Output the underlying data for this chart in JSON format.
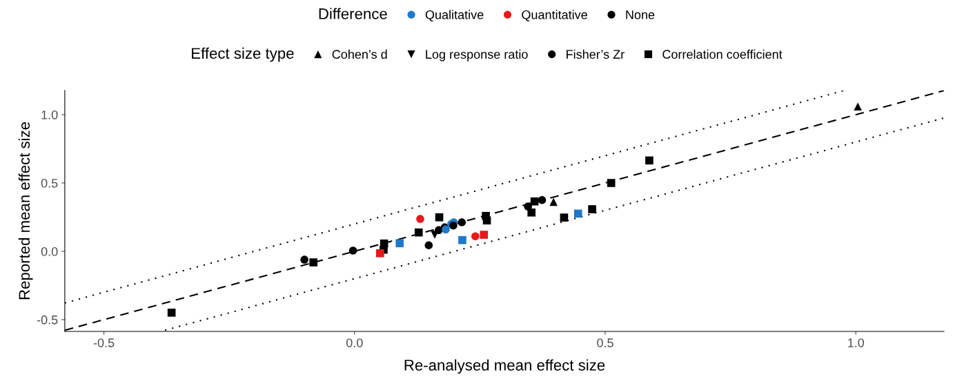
{
  "chart_data": {
    "type": "scatter",
    "xlabel": "Re-analysed mean effect size",
    "ylabel": "Reported mean effect size",
    "legend_title": [
      "Difference",
      "Effect size type"
    ],
    "legend": "top",
    "xlim": [
      -0.578,
      1.176
    ],
    "ylim": [
      -0.586,
      1.177
    ],
    "xticks": [
      -0.5,
      {
        "value": 0,
        "label": "0.0"
      },
      0.5,
      {
        "value": 1,
        "label": "1.0"
      }
    ],
    "yticks": [
      -0.5,
      {
        "value": 0,
        "label": "0.0"
      },
      0.5,
      {
        "value": 1,
        "label": "1.0"
      }
    ],
    "grid": false,
    "series": [
      {
        "name": "Qualitative",
        "color": "#1f78c8",
        "marker": "circle"
      },
      {
        "name": "Quantitative",
        "color": "#e41a1c",
        "marker": "circle"
      },
      {
        "name": "None",
        "color": "#000000",
        "marker": "circle"
      },
      {
        "name": "Cohen’s d",
        "color": "#000000",
        "marker": "triangle",
        "x": [
          0.397,
          1.004
        ],
        "values": [
          0.362,
          1.06
        ],
        "colors": [
          "#000000",
          "#000000"
        ]
      },
      {
        "name": "Log response ratio",
        "color": "#000000",
        "marker": "triangle_down",
        "x": [
          0.16
        ],
        "values": [
          0.121
        ],
        "colors": [
          "#000000"
        ]
      },
      {
        "name": "Fisher’s Zr",
        "color": "#000000",
        "marker": "circle",
        "x": [
          -0.1,
          -0.003,
          0.131,
          0.148,
          0.168,
          0.18,
          0.182,
          0.193,
          0.198,
          0.197,
          0.214,
          0.241,
          0.346,
          0.374
        ],
        "values": [
          -0.061,
          0.005,
          0.237,
          0.044,
          0.155,
          0.175,
          0.16,
          0.2,
          0.212,
          0.188,
          0.212,
          0.11,
          0.328,
          0.375
        ],
        "colors": [
          "#000000",
          "#000000",
          "#e41a1c",
          "#000000",
          "#000000",
          "#000000",
          "#1f78c8",
          "#1f78c8",
          "#1f78c8",
          "#000000",
          "#000000",
          "#e41a1c",
          "#000000",
          "#000000"
        ]
      },
      {
        "name": "Correlation coefficient",
        "color": "#000000",
        "marker": "square",
        "x": [
          -0.365,
          -0.082,
          0.059,
          0.058,
          0.051,
          0.09,
          0.169,
          0.128,
          0.215,
          0.258,
          0.262,
          0.264,
          0.359,
          0.353,
          0.418,
          0.446,
          0.474,
          0.512,
          0.588
        ],
        "values": [
          -0.449,
          -0.081,
          0.057,
          0.012,
          -0.014,
          0.059,
          0.249,
          0.138,
          0.082,
          0.121,
          0.259,
          0.226,
          0.365,
          0.284,
          0.247,
          0.276,
          0.308,
          0.5,
          0.665
        ],
        "colors": [
          "#000000",
          "#000000",
          "#000000",
          "#000000",
          "#e41a1c",
          "#1f78c8",
          "#000000",
          "#000000",
          "#1f78c8",
          "#e41a1c",
          "#000000",
          "#000000",
          "#000000",
          "#000000",
          "#000000",
          "#1f78c8",
          "#000000",
          "#000000",
          "#000000"
        ]
      },
      {
        "type": "line",
        "color": "#000000",
        "line_style": "dotted",
        "x": [
          -0.578,
          0.977
        ],
        "values": [
          -0.378,
          1.177
        ]
      },
      {
        "type": "line",
        "color": "#000000",
        "line_style": "dashed",
        "x": [
          -0.578,
          1.176
        ],
        "values": [
          -0.578,
          1.176
        ]
      },
      {
        "type": "line",
        "color": "#000000",
        "line_style": "dotted",
        "x": [
          -0.378,
          1.176
        ],
        "values": [
          -0.578,
          0.976
        ]
      }
    ]
  }
}
